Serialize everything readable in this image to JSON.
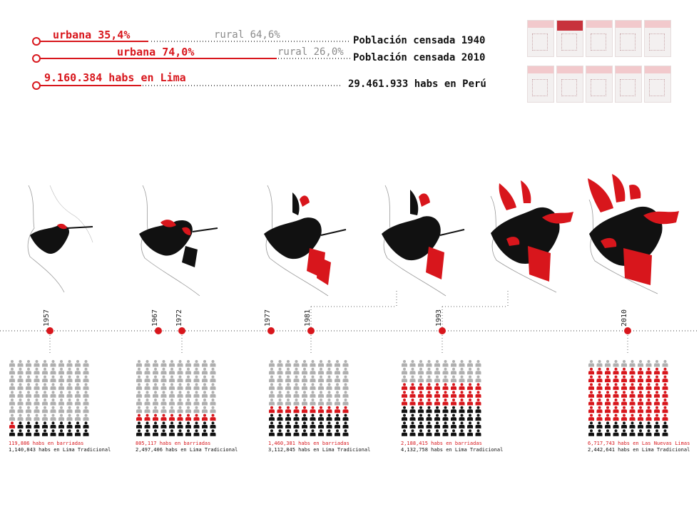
{
  "header": {
    "row1": {
      "urban_label": "urbana 35,4%",
      "rural_label": "rural 64,6%",
      "title": "Población censada 1940",
      "urban_share": 35.4
    },
    "row2": {
      "urban_label": "urbana 74,0%",
      "rural_label": "rural 26,0%",
      "title": "Población censada 2010",
      "urban_share": 74.0
    },
    "row3": {
      "lima_label": "9.160.384 habs en Lima",
      "peru_label": "29.461.933 habs en Perú"
    }
  },
  "timeline": {
    "years": [
      "1957",
      "1967",
      "1972",
      "1977",
      "1981",
      "1993",
      "2010"
    ],
    "accent_color": "#d8161c",
    "black_color": "#111111",
    "grey_color": "#b0b0b0"
  },
  "pictograms": [
    {
      "red_label": "119,886 habs en barriadas",
      "black_label": "1,140,843 habs en Lima Tradicional",
      "counts": {
        "grey": 80,
        "red": 1,
        "black": 19
      }
    },
    {
      "red_label": "805,117 habs en barriadas",
      "black_label": "2,497,406 habs en Lima Tradicional",
      "counts": {
        "grey": 70,
        "red": 10,
        "black": 20
      }
    },
    {
      "red_label": "1,460,381 habs en barriadas",
      "black_label": "3,112,845 habs en Lima Tradicional",
      "counts": {
        "grey": 60,
        "red": 10,
        "black": 30
      }
    },
    {
      "red_label": "2,188,415 habs en barriadas",
      "black_label": "4,132,758 habs en Lima Tradicional",
      "counts": {
        "grey": 30,
        "red": 30,
        "black": 40
      }
    },
    {
      "red_label": "6,717,743 habs en Las Nuevas Limas",
      "black_label": "2,442,641 habs en Lima Tradicional",
      "counts": {
        "grey": 10,
        "red": 70,
        "black": 20
      }
    }
  ]
}
